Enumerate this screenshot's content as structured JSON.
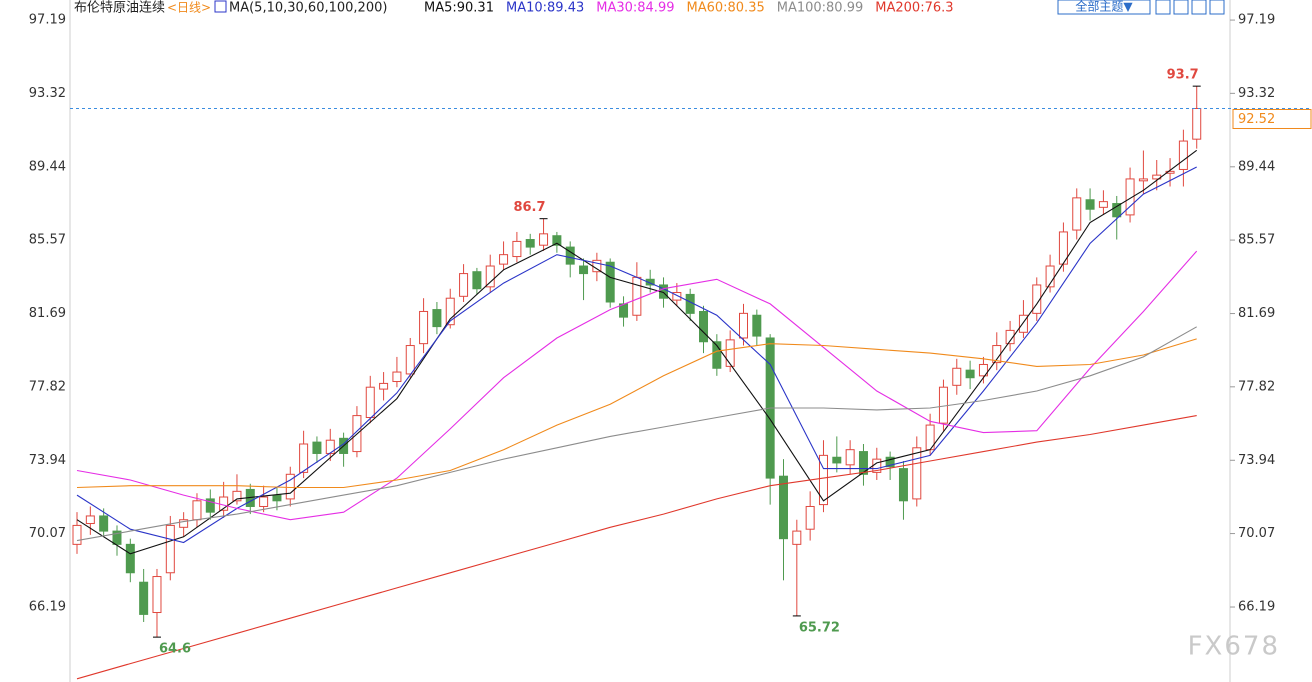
{
  "chart_data": {
    "type": "candlestick",
    "title": "布伦特原油连续",
    "period": "<日线>",
    "ma_label": "MA(5,10,30,60,100,200)",
    "theme_button": "全部主题▼",
    "watermark": "FX678",
    "ylim": [
      62.23,
      98.25
    ],
    "yticks": [
      97.19,
      93.32,
      89.44,
      85.57,
      81.69,
      77.82,
      73.94,
      70.07,
      66.19
    ],
    "up_color": "#e0483f",
    "down_color": "#4f9a4f",
    "open": [
      69.5,
      70.6,
      71.0,
      70.2,
      69.5,
      67.5,
      65.9,
      68.0,
      70.4,
      70.8,
      71.9,
      71.3,
      71.8,
      72.4,
      71.5,
      72.1,
      71.9,
      73.3,
      74.9,
      74.3,
      75.1,
      74.4,
      76.2,
      77.7,
      78.1,
      78.5,
      80.1,
      81.9,
      81.1,
      82.6,
      83.9,
      83.1,
      84.3,
      84.7,
      85.6,
      85.3,
      85.8,
      85.2,
      84.2,
      83.9,
      84.4,
      82.2,
      81.6,
      83.5,
      83.2,
      82.4,
      82.7,
      81.8,
      80.2,
      78.9,
      80.4,
      81.6,
      80.4,
      73.1,
      69.5,
      70.3,
      71.6,
      74.1,
      73.7,
      74.4,
      73.3,
      74.1,
      73.5,
      71.9,
      74.5,
      75.9,
      77.9,
      78.7,
      78.4,
      79.1,
      80.1,
      80.7,
      81.7,
      83.1,
      84.3,
      86.1,
      87.7,
      87.3,
      87.5,
      86.9,
      88.7,
      88.8,
      89.1,
      89.3,
      90.9
    ],
    "high": [
      71.2,
      71.5,
      71.4,
      70.5,
      69.8,
      68.2,
      68.2,
      71.0,
      71.2,
      72.2,
      72.4,
      72.8,
      73.2,
      72.7,
      72.6,
      72.5,
      73.6,
      75.5,
      75.2,
      75.6,
      75.4,
      76.8,
      78.4,
      78.6,
      79.4,
      80.4,
      82.5,
      82.3,
      83.0,
      84.3,
      84.1,
      84.8,
      85.5,
      86.0,
      85.9,
      86.7,
      86.0,
      85.5,
      84.6,
      84.9,
      84.6,
      82.6,
      84.4,
      84.0,
      83.6,
      83.3,
      83.0,
      82.1,
      80.6,
      80.8,
      82.2,
      81.9,
      80.6,
      74.0,
      70.8,
      72.3,
      75.0,
      75.2,
      75.0,
      74.8,
      74.6,
      74.4,
      73.9,
      75.2,
      76.4,
      78.2,
      79.3,
      79.2,
      79.4,
      80.7,
      81.3,
      82.4,
      83.6,
      84.8,
      86.5,
      88.3,
      88.3,
      88.2,
      87.9,
      89.4,
      90.3,
      89.8,
      89.9,
      91.4,
      93.7
    ],
    "low": [
      69.0,
      70.0,
      69.9,
      68.9,
      67.5,
      65.4,
      64.6,
      67.6,
      69.9,
      70.4,
      70.8,
      70.9,
      71.6,
      71.1,
      71.2,
      71.3,
      71.5,
      73.0,
      73.8,
      73.9,
      73.6,
      74.1,
      75.9,
      77.1,
      77.8,
      78.3,
      79.6,
      80.6,
      80.9,
      82.3,
      82.7,
      82.8,
      84.0,
      84.4,
      84.8,
      85.0,
      84.9,
      83.6,
      82.4,
      83.4,
      82.0,
      81.0,
      81.3,
      82.8,
      82.0,
      82.1,
      81.3,
      79.6,
      78.4,
      78.6,
      80.0,
      80.0,
      71.6,
      67.6,
      65.72,
      69.7,
      71.2,
      73.3,
      73.2,
      72.6,
      72.9,
      72.9,
      70.8,
      71.5,
      74.2,
      75.5,
      77.4,
      77.7,
      78.0,
      78.7,
      79.7,
      80.4,
      81.3,
      82.8,
      83.9,
      85.6,
      86.6,
      86.9,
      85.6,
      86.5,
      88.0,
      88.2,
      88.4,
      88.4,
      90.4
    ],
    "close": [
      70.5,
      71.0,
      70.2,
      69.5,
      68.0,
      65.8,
      67.8,
      70.5,
      70.8,
      71.8,
      71.2,
      72.0,
      72.3,
      71.5,
      72.0,
      71.8,
      73.2,
      74.8,
      74.3,
      75.0,
      74.3,
      76.3,
      77.8,
      78.0,
      78.6,
      80.0,
      81.8,
      81.0,
      82.5,
      83.8,
      83.0,
      84.2,
      84.8,
      85.5,
      85.2,
      85.9,
      85.3,
      84.3,
      83.8,
      84.5,
      82.3,
      81.5,
      83.6,
      83.2,
      82.5,
      82.8,
      81.7,
      80.2,
      78.8,
      80.3,
      81.7,
      80.5,
      73.0,
      69.8,
      70.2,
      71.5,
      74.2,
      73.8,
      74.5,
      73.2,
      74.0,
      73.6,
      71.8,
      74.6,
      75.8,
      77.8,
      78.8,
      78.3,
      79.0,
      80.0,
      80.8,
      81.6,
      83.2,
      84.2,
      86.0,
      87.8,
      87.2,
      87.6,
      86.8,
      88.8,
      88.8,
      89.0,
      89.2,
      90.8,
      92.52
    ],
    "ma_x": [
      0,
      4,
      8,
      12,
      16,
      20,
      24,
      28,
      32,
      36,
      40,
      44,
      48,
      52,
      56,
      60,
      64,
      68,
      72,
      76,
      80,
      84
    ],
    "series": [
      {
        "name": "MA5:90.31",
        "color": "#111111",
        "values": [
          70.8,
          69.0,
          69.9,
          71.9,
          72.2,
          74.7,
          77.2,
          81.4,
          84.0,
          85.4,
          83.6,
          82.8,
          80.0,
          76.1,
          71.8,
          73.8,
          74.5,
          78.3,
          82.2,
          86.5,
          88.2,
          90.31
        ]
      },
      {
        "name": "MA10:89.43",
        "color": "#2b35c8",
        "values": [
          72.1,
          70.3,
          69.6,
          71.4,
          72.9,
          74.8,
          77.5,
          81.3,
          83.3,
          84.8,
          84.2,
          83.0,
          81.6,
          79.0,
          73.5,
          73.5,
          74.2,
          77.6,
          81.2,
          85.4,
          88.0,
          89.43
        ]
      },
      {
        "name": "MA30:84.99",
        "color": "#e52ee5",
        "values": [
          73.4,
          72.9,
          72.1,
          71.4,
          70.8,
          71.2,
          73.0,
          75.6,
          78.3,
          80.4,
          81.9,
          83.0,
          83.5,
          82.2,
          79.9,
          77.6,
          76.0,
          75.4,
          75.5,
          78.8,
          81.8,
          84.99
        ]
      },
      {
        "name": "MA60:80.35",
        "color": "#f08a1c",
        "values": [
          72.5,
          72.6,
          72.6,
          72.6,
          72.5,
          72.5,
          72.9,
          73.4,
          74.5,
          75.8,
          76.9,
          78.4,
          79.7,
          80.1,
          80.0,
          79.8,
          79.6,
          79.3,
          78.9,
          79.0,
          79.5,
          80.35
        ]
      },
      {
        "name": "MA100:80.99",
        "color": "#8c8c8c",
        "values": [
          69.7,
          70.2,
          70.7,
          71.1,
          71.6,
          72.1,
          72.6,
          73.3,
          74.0,
          74.6,
          75.2,
          75.7,
          76.2,
          76.7,
          76.7,
          76.6,
          76.7,
          77.1,
          77.6,
          78.4,
          79.4,
          80.99
        ]
      },
      {
        "name": "MA200:76.3",
        "color": "#e0382c",
        "values": [
          62.4,
          63.2,
          64.0,
          64.8,
          65.6,
          66.4,
          67.2,
          68.0,
          68.8,
          69.6,
          70.4,
          71.1,
          71.9,
          72.6,
          73.0,
          73.4,
          73.9,
          74.4,
          74.9,
          75.3,
          75.8,
          76.3
        ]
      }
    ]
  }
}
